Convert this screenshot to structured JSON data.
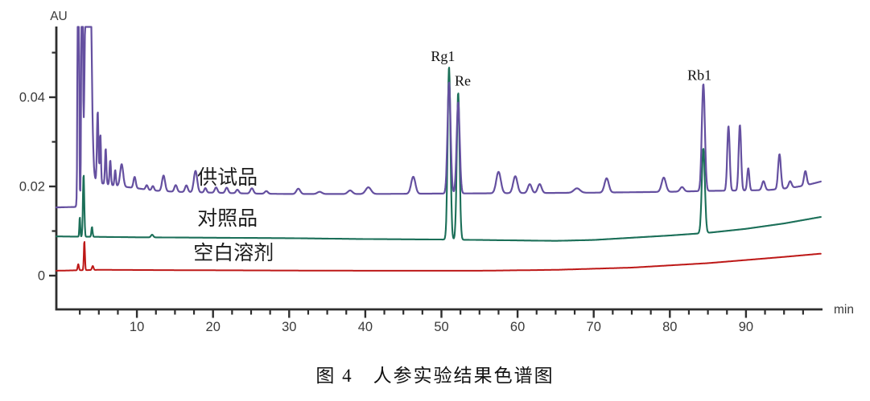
{
  "figure": {
    "caption": "图 4　人参实验结果色谱图"
  },
  "chart_data": {
    "type": "line",
    "title": "",
    "xlabel": "min",
    "ylabel": "AU",
    "xlim": [
      -0.6,
      100.3
    ],
    "ylim": [
      -0.008,
      0.0559
    ],
    "grid": false,
    "legend_position": "inline-left",
    "axis_color": "#2e2e2e",
    "tick_label_color": "#3a3a3a",
    "x_major_ticks": [
      {
        "value": 10,
        "label": "10"
      },
      {
        "value": 20,
        "label": "20"
      },
      {
        "value": 30,
        "label": "30"
      },
      {
        "value": 40,
        "label": "40"
      },
      {
        "value": 50,
        "label": "50"
      },
      {
        "value": 60,
        "label": "60"
      },
      {
        "value": 70,
        "label": "70"
      },
      {
        "value": 80,
        "label": "80"
      },
      {
        "value": 90,
        "label": "90"
      }
    ],
    "x_minor_step": 2.5,
    "y_major_ticks": [
      {
        "value": 0,
        "label": "0"
      },
      {
        "value": 0.02,
        "label": "0.02"
      },
      {
        "value": 0.04,
        "label": "0.04"
      }
    ],
    "y_minor_ticks": [
      0.01,
      0.03,
      0.05
    ],
    "peak_annotations": [
      {
        "text": "Rg1",
        "t": 50.2,
        "au": 0.0492
      },
      {
        "text": "Re",
        "t": 52.8,
        "au": 0.0437
      },
      {
        "text": "Rb1",
        "t": 83.9,
        "au": 0.045
      }
    ],
    "series": [
      {
        "key": "test-sample",
        "name": "供试品",
        "color": "#6550a0",
        "stroke_width": 2.2,
        "label_pos": {
          "t": 21.9,
          "au": 0.0222
        },
        "baseline": [
          [
            -0.6,
            0.0153
          ],
          [
            1.9,
            0.0154
          ],
          [
            4.5,
            0.021
          ],
          [
            6,
            0.0205
          ],
          [
            8,
            0.02
          ],
          [
            10,
            0.0196
          ],
          [
            12,
            0.0191
          ],
          [
            15,
            0.0188
          ],
          [
            20,
            0.0186
          ],
          [
            25,
            0.0184
          ],
          [
            30,
            0.0183
          ],
          [
            40,
            0.0183
          ],
          [
            50,
            0.0184
          ],
          [
            60,
            0.0185
          ],
          [
            70,
            0.0186
          ],
          [
            75,
            0.0187
          ],
          [
            80,
            0.0188
          ],
          [
            85,
            0.019
          ],
          [
            90,
            0.0191
          ],
          [
            93,
            0.0192
          ],
          [
            96,
            0.0197
          ],
          [
            98,
            0.0203
          ],
          [
            100.3,
            0.0213
          ]
        ],
        "peaks": [
          [
            2.3,
            0.1,
            0.08
          ],
          [
            2.8,
            0.1,
            0.08
          ],
          [
            3.6,
            0.1,
            0.3
          ],
          [
            4.85,
            0.016,
            0.1
          ],
          [
            5.2,
            0.011,
            0.08
          ],
          [
            5.9,
            0.008,
            0.09
          ],
          [
            6.5,
            0.0055,
            0.09
          ],
          [
            7.15,
            0.0035,
            0.09
          ],
          [
            8.0,
            0.005,
            0.2
          ],
          [
            9.7,
            0.0025,
            0.15
          ],
          [
            11.3,
            0.001,
            0.15
          ],
          [
            12.1,
            0.001,
            0.15
          ],
          [
            13.5,
            0.0035,
            0.2
          ],
          [
            15.1,
            0.0015,
            0.18
          ],
          [
            16.5,
            0.0015,
            0.18
          ],
          [
            17.7,
            0.0048,
            0.22
          ],
          [
            19.0,
            0.001,
            0.15
          ],
          [
            20.4,
            0.0012,
            0.18
          ],
          [
            21.8,
            0.0012,
            0.18
          ],
          [
            23.2,
            0.0008,
            0.18
          ],
          [
            25.1,
            0.0012,
            0.2
          ],
          [
            27.0,
            0.0006,
            0.2
          ],
          [
            31.2,
            0.0012,
            0.25
          ],
          [
            34.0,
            0.0005,
            0.3
          ],
          [
            38.0,
            0.0008,
            0.3
          ],
          [
            40.4,
            0.0015,
            0.35
          ],
          [
            46.3,
            0.0038,
            0.28
          ],
          [
            51.0,
            0.025,
            0.2
          ],
          [
            52.2,
            0.0205,
            0.2
          ],
          [
            57.5,
            0.0048,
            0.3
          ],
          [
            59.7,
            0.0038,
            0.28
          ],
          [
            61.6,
            0.002,
            0.25
          ],
          [
            62.9,
            0.002,
            0.25
          ],
          [
            67.8,
            0.001,
            0.4
          ],
          [
            71.7,
            0.0032,
            0.28
          ],
          [
            79.2,
            0.0032,
            0.28
          ],
          [
            81.6,
            0.001,
            0.25
          ],
          [
            84.4,
            0.024,
            0.2
          ],
          [
            87.7,
            0.0145,
            0.16
          ],
          [
            89.2,
            0.0147,
            0.16
          ],
          [
            90.3,
            0.005,
            0.14
          ],
          [
            92.3,
            0.002,
            0.2
          ],
          [
            94.4,
            0.0078,
            0.18
          ],
          [
            95.8,
            0.0015,
            0.2
          ],
          [
            97.8,
            0.0032,
            0.18
          ]
        ]
      },
      {
        "key": "reference-standard",
        "name": "对照品",
        "color": "#1b6f58",
        "stroke_width": 2.1,
        "label_pos": {
          "t": 21.9,
          "au": 0.013
        },
        "baseline": [
          [
            -0.6,
            0.0088
          ],
          [
            10,
            0.0086
          ],
          [
            20,
            0.0085
          ],
          [
            30,
            0.0084
          ],
          [
            40,
            0.0082
          ],
          [
            50,
            0.0081
          ],
          [
            55,
            0.008
          ],
          [
            60,
            0.0079
          ],
          [
            65,
            0.0078
          ],
          [
            70,
            0.008
          ],
          [
            75,
            0.0085
          ],
          [
            80,
            0.009
          ],
          [
            85,
            0.0096
          ],
          [
            90,
            0.0105
          ],
          [
            95,
            0.0117
          ],
          [
            100.3,
            0.0133
          ]
        ],
        "peaks": [
          [
            2.5,
            0.0045,
            0.06
          ],
          [
            3.0,
            0.014,
            0.09
          ],
          [
            4.1,
            0.0022,
            0.08
          ],
          [
            12.0,
            0.0006,
            0.15
          ],
          [
            51.0,
            0.0388,
            0.18
          ],
          [
            52.2,
            0.033,
            0.18
          ],
          [
            84.4,
            0.019,
            0.2
          ]
        ]
      },
      {
        "key": "blank-solvent",
        "name": "空白溶剂",
        "color": "#bd1817",
        "stroke_width": 2.0,
        "label_pos": {
          "t": 22.7,
          "au": 0.0052
        },
        "baseline": [
          [
            -0.6,
            0.0011
          ],
          [
            5,
            0.0013
          ],
          [
            20,
            0.0012
          ],
          [
            40,
            0.0011
          ],
          [
            55,
            0.0011
          ],
          [
            65,
            0.0013
          ],
          [
            75,
            0.0018
          ],
          [
            85,
            0.0028
          ],
          [
            95,
            0.0042
          ],
          [
            100.3,
            0.005
          ]
        ],
        "peaks": [
          [
            2.3,
            0.0014,
            0.08
          ],
          [
            3.1,
            0.0066,
            0.07
          ],
          [
            4.2,
            0.0009,
            0.1
          ]
        ]
      }
    ]
  }
}
